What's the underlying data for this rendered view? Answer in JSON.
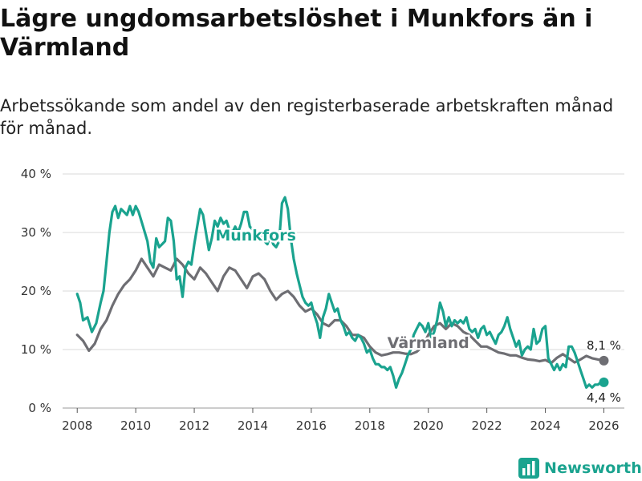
{
  "title": "Lägre ungdomsarbetslöshet i Munkfors än i Värmland",
  "subtitle": "Arbetssökande som andel av den registerbaserade arbetskraften månad för månad.",
  "brand": {
    "name": "Newsworthy",
    "color": "#1aa38f"
  },
  "chart_data": {
    "type": "line",
    "x_unit": "year (decimal)",
    "y_unit": "%",
    "ylim": [
      0,
      40
    ],
    "xlim": [
      2007.5,
      2026.7
    ],
    "y_ticks": [
      0,
      10,
      20,
      30,
      40
    ],
    "y_tick_labels": [
      "0 %",
      "10 %",
      "20 %",
      "30 %",
      "40 %"
    ],
    "x_ticks": [
      2008,
      2010,
      2012,
      2014,
      2016,
      2018,
      2020,
      2022,
      2024,
      2026
    ],
    "x_tick_labels": [
      "2008",
      "2010",
      "2012",
      "2014",
      "2016",
      "2018",
      "2020",
      "2022",
      "2024",
      "2026"
    ],
    "grid": "horizontal",
    "series": [
      {
        "name": "Värmland",
        "label": "Värmland",
        "color": "#6e6e73",
        "end_label": "8,1 %",
        "end_value": 8.1,
        "points": [
          [
            2008.0,
            12.5
          ],
          [
            2008.2,
            11.5
          ],
          [
            2008.4,
            9.8
          ],
          [
            2008.6,
            11.0
          ],
          [
            2008.8,
            13.5
          ],
          [
            2009.0,
            15.0
          ],
          [
            2009.2,
            17.5
          ],
          [
            2009.4,
            19.5
          ],
          [
            2009.6,
            21.0
          ],
          [
            2009.8,
            22.0
          ],
          [
            2010.0,
            23.5
          ],
          [
            2010.2,
            25.5
          ],
          [
            2010.4,
            24.0
          ],
          [
            2010.6,
            22.5
          ],
          [
            2010.8,
            24.5
          ],
          [
            2011.0,
            24.0
          ],
          [
            2011.2,
            23.5
          ],
          [
            2011.4,
            25.5
          ],
          [
            2011.6,
            24.5
          ],
          [
            2011.8,
            23.0
          ],
          [
            2012.0,
            22.0
          ],
          [
            2012.2,
            24.0
          ],
          [
            2012.4,
            23.0
          ],
          [
            2012.6,
            21.5
          ],
          [
            2012.8,
            20.0
          ],
          [
            2013.0,
            22.5
          ],
          [
            2013.2,
            24.0
          ],
          [
            2013.4,
            23.5
          ],
          [
            2013.6,
            22.0
          ],
          [
            2013.8,
            20.5
          ],
          [
            2014.0,
            22.5
          ],
          [
            2014.2,
            23.0
          ],
          [
            2014.4,
            22.0
          ],
          [
            2014.6,
            20.0
          ],
          [
            2014.8,
            18.5
          ],
          [
            2015.0,
            19.5
          ],
          [
            2015.2,
            20.0
          ],
          [
            2015.4,
            19.0
          ],
          [
            2015.6,
            17.5
          ],
          [
            2015.8,
            16.5
          ],
          [
            2016.0,
            17.0
          ],
          [
            2016.2,
            16.0
          ],
          [
            2016.4,
            14.5
          ],
          [
            2016.6,
            14.0
          ],
          [
            2016.8,
            15.0
          ],
          [
            2017.0,
            15.0
          ],
          [
            2017.2,
            14.0
          ],
          [
            2017.4,
            12.5
          ],
          [
            2017.6,
            12.5
          ],
          [
            2017.8,
            12.0
          ],
          [
            2018.0,
            10.5
          ],
          [
            2018.2,
            9.5
          ],
          [
            2018.4,
            9.0
          ],
          [
            2018.6,
            9.2
          ],
          [
            2018.8,
            9.5
          ],
          [
            2019.0,
            9.5
          ],
          [
            2019.2,
            9.3
          ],
          [
            2019.4,
            9.2
          ],
          [
            2019.6,
            9.6
          ],
          [
            2019.8,
            10.5
          ],
          [
            2020.0,
            12.5
          ],
          [
            2020.2,
            14.0
          ],
          [
            2020.4,
            14.5
          ],
          [
            2020.6,
            13.5
          ],
          [
            2020.8,
            14.5
          ],
          [
            2021.0,
            14.0
          ],
          [
            2021.2,
            13.0
          ],
          [
            2021.4,
            12.5
          ],
          [
            2021.6,
            11.5
          ],
          [
            2021.8,
            10.5
          ],
          [
            2022.0,
            10.5
          ],
          [
            2022.2,
            10.0
          ],
          [
            2022.4,
            9.5
          ],
          [
            2022.6,
            9.3
          ],
          [
            2022.8,
            9.0
          ],
          [
            2023.0,
            9.0
          ],
          [
            2023.2,
            8.6
          ],
          [
            2023.4,
            8.3
          ],
          [
            2023.6,
            8.2
          ],
          [
            2023.8,
            8.0
          ],
          [
            2024.0,
            8.2
          ],
          [
            2024.2,
            7.7
          ],
          [
            2024.4,
            8.6
          ],
          [
            2024.6,
            9.2
          ],
          [
            2024.8,
            8.5
          ],
          [
            2025.0,
            7.8
          ],
          [
            2025.2,
            8.3
          ],
          [
            2025.4,
            8.9
          ],
          [
            2025.6,
            8.5
          ],
          [
            2025.8,
            8.3
          ],
          [
            2026.0,
            8.1
          ]
        ]
      },
      {
        "name": "Munkfors",
        "label": "Munkfors",
        "color": "#1aa38f",
        "end_label": "4,4 %",
        "end_value": 4.4,
        "points": [
          [
            2008.0,
            19.5
          ],
          [
            2008.1,
            18.0
          ],
          [
            2008.2,
            15.0
          ],
          [
            2008.35,
            15.5
          ],
          [
            2008.5,
            13.0
          ],
          [
            2008.65,
            14.5
          ],
          [
            2008.8,
            18.0
          ],
          [
            2008.9,
            20.0
          ],
          [
            2009.0,
            25.0
          ],
          [
            2009.1,
            30.0
          ],
          [
            2009.2,
            33.5
          ],
          [
            2009.3,
            34.5
          ],
          [
            2009.4,
            32.5
          ],
          [
            2009.5,
            34.0
          ],
          [
            2009.6,
            33.5
          ],
          [
            2009.7,
            33.0
          ],
          [
            2009.8,
            34.5
          ],
          [
            2009.9,
            33.0
          ],
          [
            2010.0,
            34.5
          ],
          [
            2010.1,
            33.5
          ],
          [
            2010.25,
            31.0
          ],
          [
            2010.4,
            28.5
          ],
          [
            2010.5,
            25.0
          ],
          [
            2010.6,
            24.0
          ],
          [
            2010.7,
            29.0
          ],
          [
            2010.8,
            27.5
          ],
          [
            2010.9,
            28.0
          ],
          [
            2011.0,
            28.5
          ],
          [
            2011.1,
            32.5
          ],
          [
            2011.2,
            32.0
          ],
          [
            2011.3,
            28.5
          ],
          [
            2011.4,
            22.0
          ],
          [
            2011.5,
            22.5
          ],
          [
            2011.6,
            19.0
          ],
          [
            2011.7,
            24.0
          ],
          [
            2011.8,
            25.0
          ],
          [
            2011.9,
            24.5
          ],
          [
            2012.0,
            28.0
          ],
          [
            2012.1,
            31.0
          ],
          [
            2012.2,
            34.0
          ],
          [
            2012.3,
            33.0
          ],
          [
            2012.4,
            30.0
          ],
          [
            2012.5,
            27.0
          ],
          [
            2012.6,
            29.0
          ],
          [
            2012.7,
            32.0
          ],
          [
            2012.8,
            31.0
          ],
          [
            2012.9,
            32.5
          ],
          [
            2013.0,
            31.5
          ],
          [
            2013.1,
            32.0
          ],
          [
            2013.2,
            30.5
          ],
          [
            2013.3,
            30.0
          ],
          [
            2013.4,
            31.0
          ],
          [
            2013.5,
            30.0
          ],
          [
            2013.6,
            31.5
          ],
          [
            2013.7,
            33.5
          ],
          [
            2013.8,
            33.5
          ],
          [
            2013.9,
            31.0
          ],
          [
            2014.0,
            30.5
          ],
          [
            2014.1,
            30.0
          ],
          [
            2014.2,
            29.0
          ],
          [
            2014.3,
            29.5
          ],
          [
            2014.4,
            28.5
          ],
          [
            2014.5,
            28.0
          ],
          [
            2014.6,
            29.5
          ],
          [
            2014.7,
            28.0
          ],
          [
            2014.8,
            27.5
          ],
          [
            2014.9,
            28.5
          ],
          [
            2015.0,
            35.0
          ],
          [
            2015.1,
            36.0
          ],
          [
            2015.2,
            34.0
          ],
          [
            2015.3,
            29.0
          ],
          [
            2015.4,
            25.5
          ],
          [
            2015.5,
            23.0
          ],
          [
            2015.6,
            21.0
          ],
          [
            2015.7,
            19.0
          ],
          [
            2015.8,
            18.0
          ],
          [
            2015.9,
            17.5
          ],
          [
            2016.0,
            18.0
          ],
          [
            2016.1,
            16.0
          ],
          [
            2016.2,
            14.5
          ],
          [
            2016.3,
            12.0
          ],
          [
            2016.4,
            15.5
          ],
          [
            2016.5,
            17.0
          ],
          [
            2016.6,
            19.5
          ],
          [
            2016.7,
            18.0
          ],
          [
            2016.8,
            16.5
          ],
          [
            2016.9,
            17.0
          ],
          [
            2017.0,
            15.0
          ],
          [
            2017.1,
            14.0
          ],
          [
            2017.2,
            12.5
          ],
          [
            2017.3,
            13.0
          ],
          [
            2017.4,
            12.0
          ],
          [
            2017.5,
            11.5
          ],
          [
            2017.6,
            12.5
          ],
          [
            2017.7,
            12.0
          ],
          [
            2017.8,
            11.0
          ],
          [
            2017.9,
            9.5
          ],
          [
            2018.0,
            10.0
          ],
          [
            2018.1,
            8.5
          ],
          [
            2018.2,
            7.5
          ],
          [
            2018.3,
            7.5
          ],
          [
            2018.4,
            7.0
          ],
          [
            2018.5,
            7.0
          ],
          [
            2018.6,
            6.5
          ],
          [
            2018.7,
            7.0
          ],
          [
            2018.8,
            5.5
          ],
          [
            2018.9,
            3.5
          ],
          [
            2019.0,
            5.0
          ],
          [
            2019.1,
            6.0
          ],
          [
            2019.2,
            7.5
          ],
          [
            2019.3,
            9.0
          ],
          [
            2019.4,
            10.0
          ],
          [
            2019.5,
            12.5
          ],
          [
            2019.6,
            13.5
          ],
          [
            2019.7,
            14.5
          ],
          [
            2019.8,
            14.0
          ],
          [
            2019.9,
            13.0
          ],
          [
            2020.0,
            14.5
          ],
          [
            2020.1,
            12.0
          ],
          [
            2020.2,
            13.0
          ],
          [
            2020.3,
            15.0
          ],
          [
            2020.4,
            18.0
          ],
          [
            2020.5,
            16.5
          ],
          [
            2020.6,
            14.0
          ],
          [
            2020.7,
            15.5
          ],
          [
            2020.8,
            14.0
          ],
          [
            2020.9,
            15.0
          ],
          [
            2021.0,
            14.5
          ],
          [
            2021.1,
            15.0
          ],
          [
            2021.2,
            14.5
          ],
          [
            2021.3,
            15.5
          ],
          [
            2021.4,
            13.5
          ],
          [
            2021.5,
            13.0
          ],
          [
            2021.6,
            13.5
          ],
          [
            2021.7,
            12.0
          ],
          [
            2021.8,
            13.5
          ],
          [
            2021.9,
            14.0
          ],
          [
            2022.0,
            12.5
          ],
          [
            2022.1,
            13.0
          ],
          [
            2022.2,
            12.0
          ],
          [
            2022.3,
            11.0
          ],
          [
            2022.4,
            12.5
          ],
          [
            2022.5,
            13.0
          ],
          [
            2022.6,
            14.0
          ],
          [
            2022.7,
            15.5
          ],
          [
            2022.8,
            13.5
          ],
          [
            2022.9,
            12.0
          ],
          [
            2023.0,
            10.5
          ],
          [
            2023.1,
            11.5
          ],
          [
            2023.2,
            9.0
          ],
          [
            2023.3,
            10.0
          ],
          [
            2023.4,
            10.5
          ],
          [
            2023.5,
            10.0
          ],
          [
            2023.6,
            13.5
          ],
          [
            2023.7,
            11.0
          ],
          [
            2023.8,
            11.5
          ],
          [
            2023.9,
            13.5
          ],
          [
            2024.0,
            14.0
          ],
          [
            2024.1,
            8.5
          ],
          [
            2024.2,
            7.5
          ],
          [
            2024.3,
            6.5
          ],
          [
            2024.4,
            7.5
          ],
          [
            2024.5,
            6.5
          ],
          [
            2024.6,
            7.5
          ],
          [
            2024.7,
            7.0
          ],
          [
            2024.8,
            10.5
          ],
          [
            2024.9,
            10.5
          ],
          [
            2025.0,
            9.5
          ],
          [
            2025.1,
            8.0
          ],
          [
            2025.2,
            6.5
          ],
          [
            2025.3,
            5.0
          ],
          [
            2025.4,
            3.5
          ],
          [
            2025.5,
            4.0
          ],
          [
            2025.6,
            3.5
          ],
          [
            2025.7,
            4.0
          ],
          [
            2025.8,
            4.0
          ],
          [
            2025.9,
            4.4
          ],
          [
            2026.0,
            4.4
          ]
        ]
      }
    ]
  }
}
